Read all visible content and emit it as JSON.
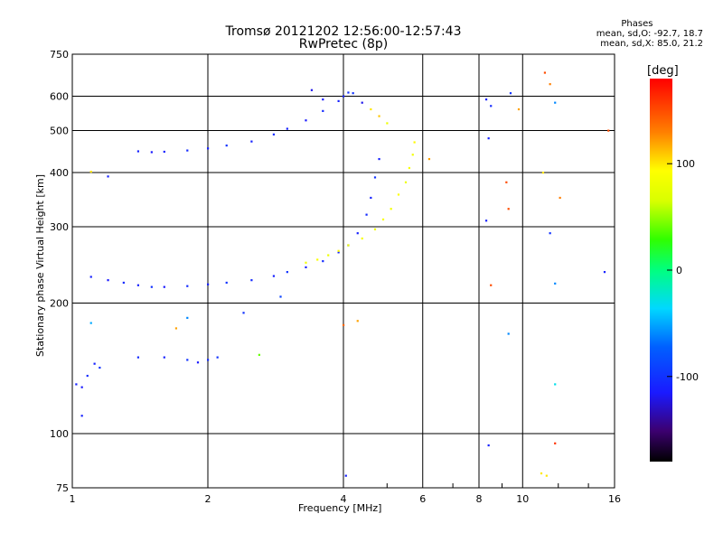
{
  "header": {
    "title_line1": "Tromsø 20121202 12:56:00-12:57:43",
    "title_line2": "RwPretec (8p)",
    "stats_title": "Phases",
    "stats_o": "mean, sd,O: -92.7, 18.7",
    "stats_x": "mean, sd,X: 85.0, 21.2"
  },
  "colorbar": {
    "unit": "[deg]",
    "ticks": [
      "100",
      "0",
      "-100"
    ],
    "range": [
      -180,
      180
    ]
  },
  "chart_data": {
    "type": "scatter",
    "title": "Tromsø 20121202 12:56:00-12:57:43",
    "subtitle": "RwPretec (8p)",
    "xlabel": "Frequency [MHz]",
    "ylabel": "Stationary phase Virtual Height [km]",
    "xscale": "log",
    "yscale": "log",
    "xlim": [
      1,
      16
    ],
    "ylim": [
      75,
      750
    ],
    "xticks": [
      "1",
      "2",
      "4",
      "6",
      "8",
      "10",
      "16"
    ],
    "yticks": [
      "75",
      "100",
      "200",
      "300",
      "400",
      "500",
      "600",
      "750"
    ],
    "grid": true,
    "color_encoding": "phase [deg], -180..180",
    "series": [
      {
        "trace": "O-mode F2 lower trace",
        "points": [
          [
            1.1,
            230,
            -110
          ],
          [
            1.2,
            226,
            -115
          ],
          [
            1.3,
            223,
            -105
          ],
          [
            1.4,
            220,
            -110
          ],
          [
            1.5,
            218,
            -100
          ],
          [
            1.6,
            218,
            -115
          ],
          [
            1.8,
            219,
            -105
          ],
          [
            2.0,
            221,
            -110
          ],
          [
            2.2,
            223,
            -100
          ],
          [
            2.5,
            226,
            -105
          ],
          [
            2.8,
            231,
            -110
          ],
          [
            3.0,
            236,
            -100
          ],
          [
            3.3,
            242,
            -110
          ],
          [
            3.6,
            250,
            -105
          ],
          [
            3.9,
            262,
            -110
          ],
          [
            4.1,
            272,
            -100
          ],
          [
            4.3,
            290,
            -110
          ],
          [
            4.5,
            320,
            -105
          ],
          [
            4.6,
            350,
            -110
          ],
          [
            4.7,
            390,
            -100
          ],
          [
            4.8,
            430,
            -110
          ]
        ]
      },
      {
        "trace": "X-mode F2 lower trace",
        "points": [
          [
            3.3,
            248,
            85
          ],
          [
            3.5,
            252,
            90
          ],
          [
            3.7,
            258,
            80
          ],
          [
            3.9,
            264,
            95
          ],
          [
            4.1,
            272,
            85
          ],
          [
            4.4,
            282,
            88
          ],
          [
            4.7,
            296,
            82
          ],
          [
            4.9,
            312,
            90
          ],
          [
            5.1,
            330,
            85
          ],
          [
            5.3,
            356,
            92
          ],
          [
            5.5,
            380,
            80
          ],
          [
            5.6,
            410,
            88
          ],
          [
            5.7,
            440,
            85
          ],
          [
            5.75,
            470,
            95
          ]
        ]
      },
      {
        "trace": "O-mode F2 upper trace",
        "points": [
          [
            1.4,
            448,
            -110
          ],
          [
            1.5,
            446,
            -115
          ],
          [
            1.6,
            447,
            -110
          ],
          [
            1.8,
            450,
            -105
          ],
          [
            2.0,
            455,
            -110
          ],
          [
            2.2,
            462,
            -100
          ],
          [
            2.5,
            472,
            -110
          ],
          [
            2.8,
            490,
            -105
          ],
          [
            3.0,
            505,
            -110
          ],
          [
            3.3,
            528,
            -115
          ],
          [
            3.6,
            555,
            -105
          ],
          [
            3.9,
            585,
            -110
          ],
          [
            4.1,
            612,
            -100
          ]
        ]
      },
      {
        "trace": "O-mode E-region trace",
        "points": [
          [
            1.02,
            130,
            -110
          ],
          [
            1.05,
            128,
            -115
          ],
          [
            1.08,
            136,
            -105
          ],
          [
            1.12,
            145,
            -110
          ],
          [
            1.15,
            142,
            -100
          ],
          [
            1.4,
            150,
            -105
          ],
          [
            1.6,
            150,
            -110
          ],
          [
            1.8,
            148,
            -100
          ],
          [
            1.9,
            146,
            -115
          ],
          [
            2.0,
            148,
            -105
          ],
          [
            2.1,
            150,
            -100
          ]
        ]
      },
      {
        "trace": "Upper vertical streaks",
        "points": [
          [
            3.4,
            620,
            -120
          ],
          [
            3.6,
            590,
            -115
          ],
          [
            4.0,
            600,
            -110
          ],
          [
            4.2,
            610,
            -100
          ],
          [
            4.4,
            580,
            -120
          ],
          [
            4.6,
            560,
            100
          ],
          [
            4.8,
            540,
            110
          ],
          [
            5.0,
            520,
            80
          ]
        ]
      },
      {
        "trace": "Scattered points",
        "points": [
          [
            8.3,
            590,
            -110
          ],
          [
            8.5,
            570,
            -105
          ],
          [
            9.4,
            610,
            -100
          ],
          [
            9.8,
            560,
            120
          ],
          [
            11.2,
            680,
            150
          ],
          [
            11.5,
            640,
            130
          ],
          [
            11.8,
            580,
            -60
          ],
          [
            8.4,
            480,
            -110
          ],
          [
            9.2,
            380,
            150
          ],
          [
            11.1,
            400,
            100
          ],
          [
            12.1,
            350,
            130
          ],
          [
            8.3,
            310,
            -110
          ],
          [
            9.3,
            330,
            150
          ],
          [
            11.5,
            290,
            -100
          ],
          [
            8.5,
            220,
            150
          ],
          [
            11.8,
            222,
            -60
          ],
          [
            15.2,
            236,
            -110
          ],
          [
            8.4,
            94,
            -110
          ],
          [
            11.8,
            95,
            160
          ],
          [
            11.0,
            81,
            100
          ],
          [
            11.3,
            80,
            100
          ],
          [
            11.8,
            130,
            -30
          ],
          [
            9.3,
            170,
            -60
          ],
          [
            4.0,
            178,
            140
          ],
          [
            4.05,
            80,
            -110
          ],
          [
            4.3,
            182,
            120
          ],
          [
            2.4,
            190,
            -100
          ],
          [
            2.6,
            152,
            40
          ],
          [
            2.9,
            207,
            -90
          ],
          [
            1.7,
            175,
            120
          ],
          [
            1.8,
            185,
            -60
          ],
          [
            1.05,
            110,
            -110
          ],
          [
            1.1,
            180,
            -50
          ],
          [
            1.2,
            392,
            -110
          ],
          [
            1.1,
            402,
            100
          ],
          [
            6.2,
            430,
            120
          ],
          [
            15.5,
            500,
            150
          ]
        ]
      }
    ]
  }
}
